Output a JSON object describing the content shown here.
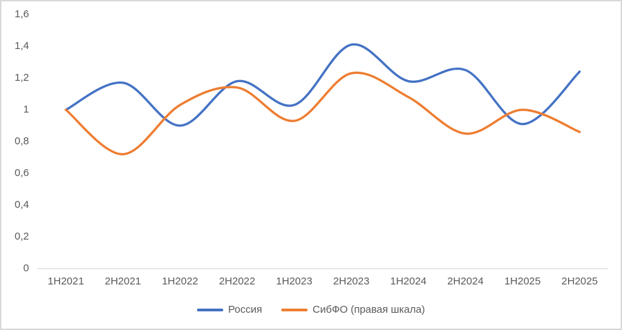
{
  "chart_data": {
    "type": "line",
    "title": "",
    "xlabel": "",
    "ylabel": "",
    "categories": [
      "1H2021",
      "2H2021",
      "1H2022",
      "2H2022",
      "1H2023",
      "2H2023",
      "1H2024",
      "2H2024",
      "1H2025",
      "2H2025"
    ],
    "series": [
      {
        "name": "Россия",
        "color": "#4472C4",
        "values": [
          1.0,
          1.17,
          0.9,
          1.18,
          1.03,
          1.41,
          1.18,
          1.25,
          0.91,
          1.24
        ]
      },
      {
        "name": "СибФО (правая шкала)",
        "color": "#ED7D31",
        "values": [
          1.0,
          0.72,
          1.03,
          1.14,
          0.93,
          1.23,
          1.08,
          0.85,
          1.0,
          0.86
        ]
      }
    ],
    "ylim": [
      0,
      1.6
    ],
    "ytick_step": 0.2,
    "ytick_labels": [
      "0",
      "0,2",
      "0,4",
      "0,6",
      "0,8",
      "1",
      "1,2",
      "1,4",
      "1,6"
    ],
    "grid": false,
    "smooth": true,
    "legend_position": "bottom"
  },
  "colors": {
    "background": "#FFFFFF",
    "axis_line": "#D9D9D9",
    "tick_text": "#595959",
    "frame_border": "#D8D8D8"
  }
}
